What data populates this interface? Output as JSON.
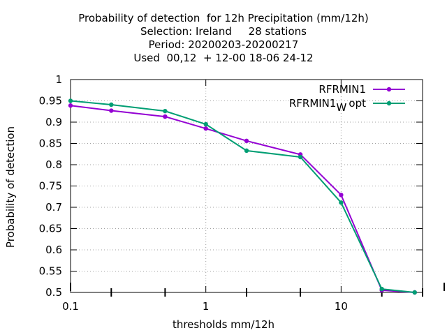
{
  "chart_data": {
    "type": "line",
    "title_lines": [
      "Probability of detection  for 12h Precipitation (mm/12h)",
      "Selection: Ireland     28 stations",
      "Period: 20200203-20200217",
      "Used  00,12  + 12-00 18-06 24-12"
    ],
    "xlabel": "thresholds mm/12h",
    "ylabel": "Probability of detection",
    "xscale": "log",
    "xlim": [
      0.1,
      40
    ],
    "ylim": [
      0.5,
      1.0
    ],
    "x_ticks": [
      "0.1",
      "1",
      "10"
    ],
    "y_ticks": [
      "0.5",
      "0.55",
      "0.6",
      "0.65",
      "0.7",
      "0.75",
      "0.8",
      "0.85",
      "0.9",
      "0.95",
      "1"
    ],
    "grid": true,
    "legend_position": "top-right",
    "x": [
      0.1,
      0.2,
      0.5,
      1,
      2,
      5,
      10,
      20,
      35
    ],
    "series": [
      {
        "name": "RFRMIN1",
        "color": "#9400d3",
        "values": [
          0.939,
          0.927,
          0.913,
          0.885,
          0.856,
          0.824,
          0.729,
          0.505,
          0.5
        ]
      },
      {
        "name": "RFRMIN1",
        "name_subscript": "W",
        "name_suffix": "opt",
        "color": "#009e73",
        "values": [
          0.95,
          0.941,
          0.926,
          0.895,
          0.833,
          0.818,
          0.711,
          0.508,
          0.5
        ]
      }
    ]
  }
}
